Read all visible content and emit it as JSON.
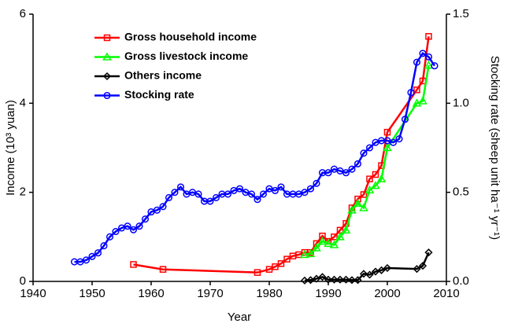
{
  "chart_data": {
    "type": "line",
    "x_label": "Year",
    "y_label": "Income (10³ yuan)",
    "y2_label": "Stocking rate (sheep unit ha⁻¹ yr⁻¹)",
    "xlim": [
      1940,
      2010
    ],
    "xticks": [
      1940,
      1950,
      1960,
      1970,
      1980,
      1990,
      2000,
      2010
    ],
    "ylim": [
      0,
      6
    ],
    "yticks": [
      0,
      2,
      4,
      6
    ],
    "y2lim": [
      0,
      1.5
    ],
    "y2ticks": [
      {
        "value": 0,
        "label": "0.0"
      },
      0.5,
      {
        "value": 1,
        "label": "1.0"
      },
      1.5
    ],
    "legend": "upper left",
    "series": [
      {
        "name": "Gross household income",
        "color": "#ff0000",
        "marker": "square",
        "x": [
          1957,
          1962,
          1978,
          1980,
          1981,
          1982,
          1983,
          1984,
          1985,
          1986,
          1987,
          1988,
          1989,
          1990,
          1991,
          1992,
          1993,
          1994,
          1995,
          1996,
          1997,
          1998,
          1999,
          2000,
          2005,
          2006,
          2007
        ],
        "values": [
          0.38,
          0.27,
          0.2,
          0.27,
          0.33,
          0.4,
          0.5,
          0.57,
          0.6,
          0.65,
          0.65,
          0.85,
          1.02,
          0.9,
          1.0,
          1.15,
          1.3,
          1.65,
          1.85,
          1.95,
          2.3,
          2.4,
          2.6,
          3.35,
          4.3,
          4.5,
          5.5
        ]
      },
      {
        "name": "Gross livestock income",
        "color": "#00ff00",
        "marker": "triangle",
        "x": [
          1986,
          1987,
          1988,
          1989,
          1990,
          1991,
          1992,
          1993,
          1994,
          1995,
          1996,
          1997,
          1998,
          1999,
          2000,
          2005,
          2006,
          2007
        ],
        "values": [
          0.6,
          0.62,
          0.75,
          0.9,
          0.85,
          0.82,
          1.0,
          1.15,
          1.6,
          1.75,
          1.65,
          2.05,
          2.15,
          2.3,
          3.0,
          4.0,
          4.05,
          4.85
        ]
      },
      {
        "name": "Others income",
        "color": "#000000",
        "marker": "diamond",
        "x": [
          1986,
          1987,
          1988,
          1989,
          1990,
          1991,
          1992,
          1993,
          1994,
          1995,
          1996,
          1997,
          1998,
          1999,
          2000,
          2005,
          2006,
          2007
        ],
        "values": [
          0.02,
          0.03,
          0.06,
          0.1,
          0.04,
          0.04,
          0.04,
          0.04,
          0.03,
          0.03,
          0.17,
          0.15,
          0.22,
          0.25,
          0.3,
          0.28,
          0.35,
          0.65
        ]
      },
      {
        "name": "Stocking rate",
        "color": "#0000ff",
        "marker": "circle",
        "axis": "y2",
        "x": [
          1947,
          1948,
          1949,
          1950,
          1951,
          1952,
          1953,
          1954,
          1955,
          1956,
          1957,
          1958,
          1959,
          1960,
          1961,
          1962,
          1963,
          1964,
          1965,
          1966,
          1967,
          1968,
          1969,
          1970,
          1971,
          1972,
          1973,
          1974,
          1975,
          1976,
          1977,
          1978,
          1979,
          1980,
          1981,
          1982,
          1983,
          1984,
          1985,
          1986,
          1987,
          1988,
          1989,
          1990,
          1991,
          1992,
          1993,
          1994,
          1995,
          1996,
          1997,
          1998,
          1999,
          2000,
          2001,
          2002,
          2003,
          2004,
          2005,
          2006,
          2007,
          2008
        ],
        "values": [
          0.11,
          0.11,
          0.12,
          0.14,
          0.16,
          0.2,
          0.25,
          0.28,
          0.3,
          0.31,
          0.29,
          0.31,
          0.35,
          0.39,
          0.4,
          0.42,
          0.47,
          0.5,
          0.53,
          0.49,
          0.5,
          0.49,
          0.45,
          0.45,
          0.47,
          0.49,
          0.49,
          0.51,
          0.52,
          0.5,
          0.49,
          0.46,
          0.49,
          0.52,
          0.51,
          0.53,
          0.49,
          0.49,
          0.49,
          0.5,
          0.52,
          0.55,
          0.61,
          0.61,
          0.63,
          0.62,
          0.61,
          0.63,
          0.66,
          0.72,
          0.75,
          0.78,
          0.79,
          0.79,
          0.78,
          0.8,
          0.91,
          1.06,
          1.23,
          1.28,
          1.26,
          1.21
        ]
      }
    ]
  }
}
